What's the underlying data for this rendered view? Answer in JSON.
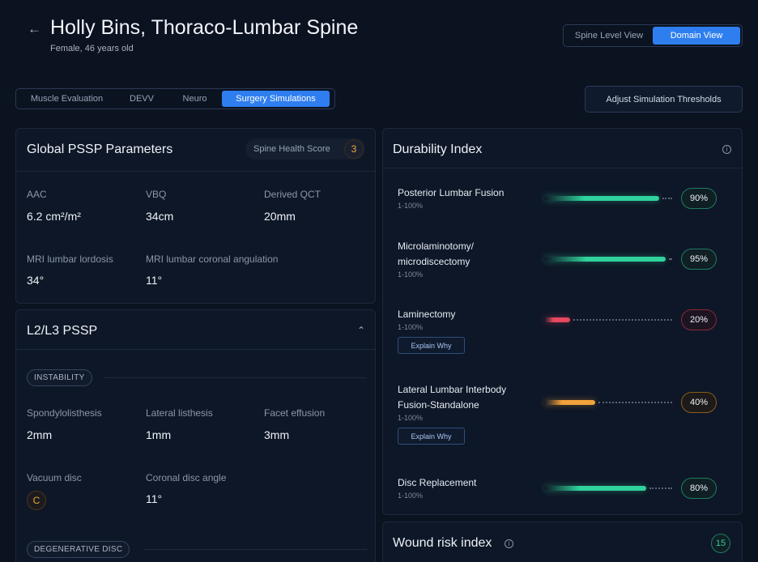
{
  "header": {
    "back_icon": "back-arrow-icon",
    "back_glyph": "←",
    "title": "Holly Bins, Thoraco-Lumbar Spine",
    "subtitle": "Female, 46 years old"
  },
  "view_toggle": {
    "options": [
      "Spine Level View",
      "Domain View"
    ],
    "selected": "Domain View"
  },
  "tabs": {
    "items": [
      "Muscle Evaluation",
      "DEVV",
      "Neuro",
      "Surgery Simulations"
    ],
    "selected": "Surgery Simulations"
  },
  "adjust_button": "Adjust Simulation Thresholds",
  "global_pssp": {
    "title": "Global PSSP Parameters",
    "spine_health_label": "Spine Health Score",
    "spine_health_value": "3",
    "params": [
      {
        "label": "AAC",
        "value": "6.2 cm²/m²"
      },
      {
        "label": "VBQ",
        "value": "34cm"
      },
      {
        "label": "Derived QCT",
        "value": "20mm"
      },
      {
        "label": "MRI lumbar lordosis",
        "value": "34°"
      },
      {
        "label": "MRI lumbar coronal angulation",
        "value": "11°"
      }
    ]
  },
  "l2l3": {
    "title": "L2/L3 PSSP",
    "chevron_glyph": "⌃",
    "instability_label": "INSTABILITY",
    "params": [
      {
        "label": "Spondylolisthesis",
        "value": "2mm"
      },
      {
        "label": "Lateral listhesis",
        "value": "1mm"
      },
      {
        "label": "Facet effusion",
        "value": "3mm"
      },
      {
        "label": "Vacuum disc",
        "value": "C"
      },
      {
        "label": "Coronal disc angle",
        "value": "11°"
      }
    ],
    "degenerative_label": "DEGENERATIVE DISC"
  },
  "durability": {
    "title": "Durability Index",
    "info_glyph": "i",
    "explain_label": "Explain Why",
    "items": [
      {
        "name_lines": [
          "Posterior Lumbar Fusion"
        ],
        "range": "1-100%",
        "value": 90,
        "label": "90%",
        "tone": "green",
        "explain": false
      },
      {
        "name_lines": [
          "Microlaminotomy/",
          "microdiscectomy"
        ],
        "range": "1-100%",
        "value": 95,
        "label": "95%",
        "tone": "green",
        "explain": false
      },
      {
        "name_lines": [
          "Laminectomy"
        ],
        "range": "1-100%",
        "value": 20,
        "label": "20%",
        "tone": "red",
        "explain": true
      },
      {
        "name_lines": [
          "Lateral Lumbar Interbody",
          "Fusion-Standalone"
        ],
        "range": "1-100%",
        "value": 40,
        "label": "40%",
        "tone": "amber",
        "explain": true
      },
      {
        "name_lines": [
          "Disc Replacement"
        ],
        "range": "1-100%",
        "value": 80,
        "label": "80%",
        "tone": "green",
        "explain": false
      }
    ],
    "colors": {
      "green": "#2fd39b",
      "red": "#e5485f",
      "amber": "#f2a33a"
    }
  },
  "wound_risk": {
    "title": "Wound risk index",
    "value": "15",
    "info_glyph": "i"
  }
}
